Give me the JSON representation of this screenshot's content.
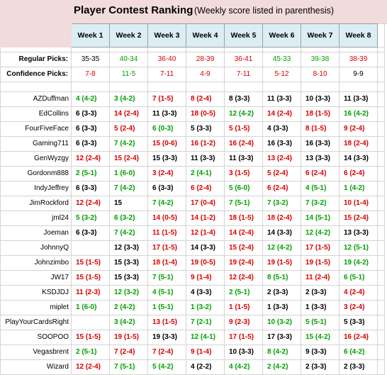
{
  "title": "Player Contest Ranking",
  "subtitle": "(Weekly score listed in parenthesis)",
  "weeks": [
    "Week 1",
    "Week 2",
    "Week 3",
    "Week 4",
    "Week 5",
    "Week 6",
    "Week 7",
    "Week 8"
  ],
  "regular_picks": {
    "label": "Regular Picks:",
    "values": [
      {
        "text": "35-35",
        "color": "black"
      },
      {
        "text": "40-34",
        "color": "green"
      },
      {
        "text": "36-40",
        "color": "red"
      },
      {
        "text": "28-39",
        "color": "red"
      },
      {
        "text": "36-41",
        "color": "red"
      },
      {
        "text": "45-33",
        "color": "green"
      },
      {
        "text": "39-38",
        "color": "green"
      },
      {
        "text": "38-39",
        "color": "red"
      }
    ]
  },
  "confidence_picks": {
    "label": "Confidence Picks:",
    "values": [
      {
        "text": "7-8",
        "color": "red"
      },
      {
        "text": "11-5",
        "color": "green"
      },
      {
        "text": "7-11",
        "color": "red"
      },
      {
        "text": "4-9",
        "color": "red"
      },
      {
        "text": "7-11",
        "color": "red"
      },
      {
        "text": "5-12",
        "color": "red"
      },
      {
        "text": "8-10",
        "color": "red"
      },
      {
        "text": "9-9",
        "color": "black"
      }
    ]
  },
  "colors": {
    "green": "#00a000",
    "red": "#d90000",
    "black": "#000000",
    "title_band": "#f2dcdb",
    "week_header": "#dbeef3"
  },
  "players": [
    {
      "name": "AZDuffman",
      "cells": [
        [
          "4 (4-2)",
          "green"
        ],
        [
          "3 (4-2)",
          "green"
        ],
        [
          "7 (1-5)",
          "red"
        ],
        [
          "8 (2-4)",
          "red"
        ],
        [
          "8 (3-3)",
          "black"
        ],
        [
          "11 (3-3)",
          "black"
        ],
        [
          "10 (3-3)",
          "black"
        ],
        [
          "11 (3-3)",
          "black"
        ]
      ]
    },
    {
      "name": "EdCollins",
      "cells": [
        [
          "6 (3-3)",
          "black"
        ],
        [
          "14 (2-4)",
          "red"
        ],
        [
          "11 (3-3)",
          "black"
        ],
        [
          "18 (0-5)",
          "red"
        ],
        [
          "12 (4-2)",
          "green"
        ],
        [
          "14 (2-4)",
          "red"
        ],
        [
          "18 (1-5)",
          "red"
        ],
        [
          "16 (4-2)",
          "green"
        ]
      ]
    },
    {
      "name": "FourFiveFace",
      "cells": [
        [
          "6 (3-3)",
          "black"
        ],
        [
          "5 (2-4)",
          "red"
        ],
        [
          "6 (0-3)",
          "green"
        ],
        [
          "5 (3-3)",
          "black"
        ],
        [
          "5 (1-5)",
          "red"
        ],
        [
          "4 (3-3)",
          "black"
        ],
        [
          "8 (1-5)",
          "red"
        ],
        [
          "9 (2-4)",
          "red"
        ]
      ]
    },
    {
      "name": "Gaming711",
      "cells": [
        [
          "6 (3-3)",
          "black"
        ],
        [
          "7 (4-2)",
          "green"
        ],
        [
          "15 (0-6)",
          "red"
        ],
        [
          "16 (1-2)",
          "red"
        ],
        [
          "16 (2-4)",
          "red"
        ],
        [
          "16 (3-3)",
          "black"
        ],
        [
          "16 (3-3)",
          "black"
        ],
        [
          "18 (2-4)",
          "red"
        ]
      ]
    },
    {
      "name": "GenWyzgy",
      "cells": [
        [
          "12 (2-4)",
          "red"
        ],
        [
          "15 (2-4)",
          "red"
        ],
        [
          "15 (3-3)",
          "black"
        ],
        [
          "11 (3-3)",
          "black"
        ],
        [
          "11 (3-3)",
          "black"
        ],
        [
          "13 (2-4)",
          "red"
        ],
        [
          "13 (3-3)",
          "black"
        ],
        [
          "14 (3-3)",
          "black"
        ]
      ]
    },
    {
      "name": "Gordonm888",
      "cells": [
        [
          "2 (5-1)",
          "green"
        ],
        [
          "1 (6-0)",
          "green"
        ],
        [
          "3 (2-4)",
          "red"
        ],
        [
          "2 (4-1)",
          "green"
        ],
        [
          "3 (1-5)",
          "red"
        ],
        [
          "5 (2-4)",
          "red"
        ],
        [
          "6 (2-4)",
          "red"
        ],
        [
          "6 (2-4)",
          "red"
        ]
      ]
    },
    {
      "name": "IndyJeffrey",
      "cells": [
        [
          "6 (3-3)",
          "black"
        ],
        [
          "7 (4-2)",
          "green"
        ],
        [
          "6 (3-3)",
          "black"
        ],
        [
          "6 (2-4)",
          "red"
        ],
        [
          "5 (6-0)",
          "green"
        ],
        [
          "6 (2-4)",
          "red"
        ],
        [
          "4 (5-1)",
          "green"
        ],
        [
          "1 (4-2)",
          "green"
        ]
      ]
    },
    {
      "name": "JimRockford",
      "cells": [
        [
          "12 (2-4)",
          "red"
        ],
        [
          "15",
          "black"
        ],
        [
          "7 (4-2)",
          "green"
        ],
        [
          "17 (0-4)",
          "red"
        ],
        [
          "7 (5-1)",
          "green"
        ],
        [
          "7 (3-2)",
          "green"
        ],
        [
          "7 (3-2)",
          "green"
        ],
        [
          "10 (1-4)",
          "red"
        ]
      ]
    },
    {
      "name": "jml24",
      "cells": [
        [
          "5 (3-2)",
          "green"
        ],
        [
          "6 (3-2)",
          "green"
        ],
        [
          "14 (0-5)",
          "red"
        ],
        [
          "14 (1-2)",
          "red"
        ],
        [
          "18 (1-5)",
          "red"
        ],
        [
          "18 (2-4)",
          "red"
        ],
        [
          "14 (5-1)",
          "green"
        ],
        [
          "15 (2-4)",
          "red"
        ]
      ]
    },
    {
      "name": "Joeman",
      "cells": [
        [
          "6 (3-3)",
          "black"
        ],
        [
          "7 (4-2)",
          "green"
        ],
        [
          "11 (1-5)",
          "red"
        ],
        [
          "12 (1-4)",
          "red"
        ],
        [
          "14 (2-4)",
          "red"
        ],
        [
          "14 (3-3)",
          "black"
        ],
        [
          "12 (4-2)",
          "green"
        ],
        [
          "13 (3-3)",
          "black"
        ]
      ]
    },
    {
      "name": "JohnnyQ",
      "cells": [
        [
          "",
          "black"
        ],
        [
          "12 (3-3)",
          "black"
        ],
        [
          "17 (1-5)",
          "red"
        ],
        [
          "14 (3-3)",
          "black"
        ],
        [
          "15 (2-4)",
          "red"
        ],
        [
          "12 (4-2)",
          "green"
        ],
        [
          "17 (1-5)",
          "red"
        ],
        [
          "12 (5-1)",
          "green"
        ]
      ]
    },
    {
      "name": "Johnzimbo",
      "cells": [
        [
          "15 (1-5)",
          "red"
        ],
        [
          "15 (3-3)",
          "black"
        ],
        [
          "18 (1-4)",
          "red"
        ],
        [
          "19 (0-5)",
          "red"
        ],
        [
          "19 (2-4)",
          "red"
        ],
        [
          "19 (1-5)",
          "red"
        ],
        [
          "19 (1-5)",
          "red"
        ],
        [
          "19 (4-2)",
          "green"
        ]
      ]
    },
    {
      "name": "JW17",
      "cells": [
        [
          "15 (1-5)",
          "red"
        ],
        [
          "15 (3-3)",
          "black"
        ],
        [
          "7 (5-1)",
          "green"
        ],
        [
          "9 (1-4)",
          "red"
        ],
        [
          "12 (2-4)",
          "red"
        ],
        [
          "8 (5-1)",
          "green"
        ],
        [
          "11 (2-4)",
          "red"
        ],
        [
          "6 (5-1)",
          "green"
        ]
      ]
    },
    {
      "name": "KSDJDJ",
      "cells": [
        [
          "11 (2-3)",
          "red"
        ],
        [
          "12 (3-2)",
          "green"
        ],
        [
          "4 (5-1)",
          "green"
        ],
        [
          "4 (3-3)",
          "black"
        ],
        [
          "2 (5-1)",
          "green"
        ],
        [
          "2 (3-3)",
          "black"
        ],
        [
          "2 (3-3)",
          "black"
        ],
        [
          "4 (2-4)",
          "red"
        ]
      ]
    },
    {
      "name": "miplet",
      "cells": [
        [
          "1 (6-0)",
          "green"
        ],
        [
          "2 (4-2)",
          "green"
        ],
        [
          "1 (5-1)",
          "green"
        ],
        [
          "1 (3-2)",
          "green"
        ],
        [
          "1 (1-5)",
          "red"
        ],
        [
          "1 (3-3)",
          "black"
        ],
        [
          "1 (3-3)",
          "black"
        ],
        [
          "3 (2-4)",
          "red"
        ]
      ]
    },
    {
      "name": "PlayYourCardsRight",
      "cells": [
        [
          "",
          "black"
        ],
        [
          "3 (4-2)",
          "green"
        ],
        [
          "13 (1-5)",
          "red"
        ],
        [
          "7 (2-1)",
          "green"
        ],
        [
          "9 (2-3)",
          "red"
        ],
        [
          "10 (3-2)",
          "green"
        ],
        [
          "5 (5-1)",
          "green"
        ],
        [
          "5 (3-3)",
          "black"
        ]
      ]
    },
    {
      "name": "SOOPOO",
      "cells": [
        [
          "15 (1-5)",
          "red"
        ],
        [
          "19 (1-5)",
          "red"
        ],
        [
          "19 (3-3)",
          "black"
        ],
        [
          "12 (4-1)",
          "green"
        ],
        [
          "17 (1-5)",
          "red"
        ],
        [
          "17 (3-3)",
          "black"
        ],
        [
          "15 (4-2)",
          "green"
        ],
        [
          "16 (2-4)",
          "red"
        ]
      ]
    },
    {
      "name": "Vegasbrent",
      "cells": [
        [
          "2 (5-1)",
          "green"
        ],
        [
          "7 (2-4)",
          "red"
        ],
        [
          "7 (2-4)",
          "red"
        ],
        [
          "9 (1-4)",
          "red"
        ],
        [
          "10 (3-3)",
          "black"
        ],
        [
          "8 (4-2)",
          "green"
        ],
        [
          "9 (3-3)",
          "black"
        ],
        [
          "6 (4-2)",
          "green"
        ]
      ]
    },
    {
      "name": "Wizard",
      "cells": [
        [
          "12 (2-4)",
          "red"
        ],
        [
          "7 (5-1)",
          "green"
        ],
        [
          "5 (4-2)",
          "green"
        ],
        [
          "4 (2-2)",
          "black"
        ],
        [
          "4 (4-2)",
          "green"
        ],
        [
          "2 (4-2)",
          "green"
        ],
        [
          "2 (3-3)",
          "black"
        ],
        [
          "2 (3-3)",
          "black"
        ]
      ]
    }
  ]
}
